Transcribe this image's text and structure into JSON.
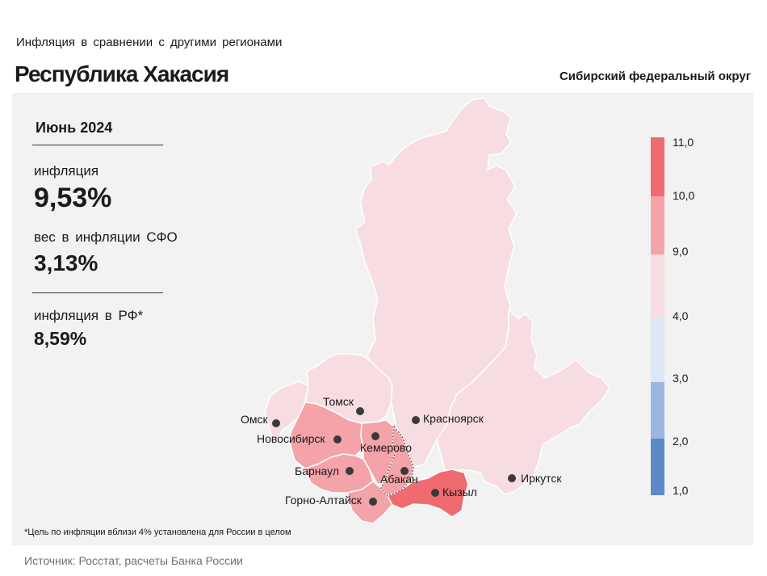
{
  "header": {
    "subtitle": "Инфляция в сравнении с другими регионами",
    "title": "Республика Хакасия",
    "district": "Сибирский федеральный округ"
  },
  "stats": {
    "period": "Июнь 2024",
    "inflation_label": "инфляция",
    "inflation_value": "9,53%",
    "weight_label": "вес в инфляции СФО",
    "weight_value": "3,13%",
    "rf_label": "инфляция в РФ*",
    "rf_value": "8,59%"
  },
  "legend": {
    "ticks": [
      "1,0",
      "2,0",
      "3,0",
      "4,0",
      "9,0",
      "10,0",
      "11,0"
    ],
    "colors": [
      "#5b8ac7",
      "#9ab7df",
      "#dde6f5",
      "#f7dde1",
      "#f4a3a9",
      "#ef6b70"
    ]
  },
  "cities": [
    {
      "name": "Омск"
    },
    {
      "name": "Томск"
    },
    {
      "name": "Красноярск"
    },
    {
      "name": "Новосибирск"
    },
    {
      "name": "Кемерово"
    },
    {
      "name": "Барнаул"
    },
    {
      "name": "Абакан"
    },
    {
      "name": "Горно-Алтайск"
    },
    {
      "name": "Кызыл"
    },
    {
      "name": "Иркутск"
    }
  ],
  "regions": {
    "krasnoyarsk": "#f7dde1",
    "irkutsk": "#f7dde1",
    "omsk": "#f7dde1",
    "tomsk": "#f7dde1",
    "novosibirsk": "#f4a3a9",
    "kemerovo": "#f4a3a9",
    "altai_krai": "#f4a3a9",
    "altai_rep": "#f4a3a9",
    "khakassia": "#f4a3a9",
    "tyva": "#ef6b70"
  },
  "footnote": "*Цель по инфляции вблизи 4% установлена для России в целом",
  "source": "Источник: Росстат, расчеты Банка России"
}
